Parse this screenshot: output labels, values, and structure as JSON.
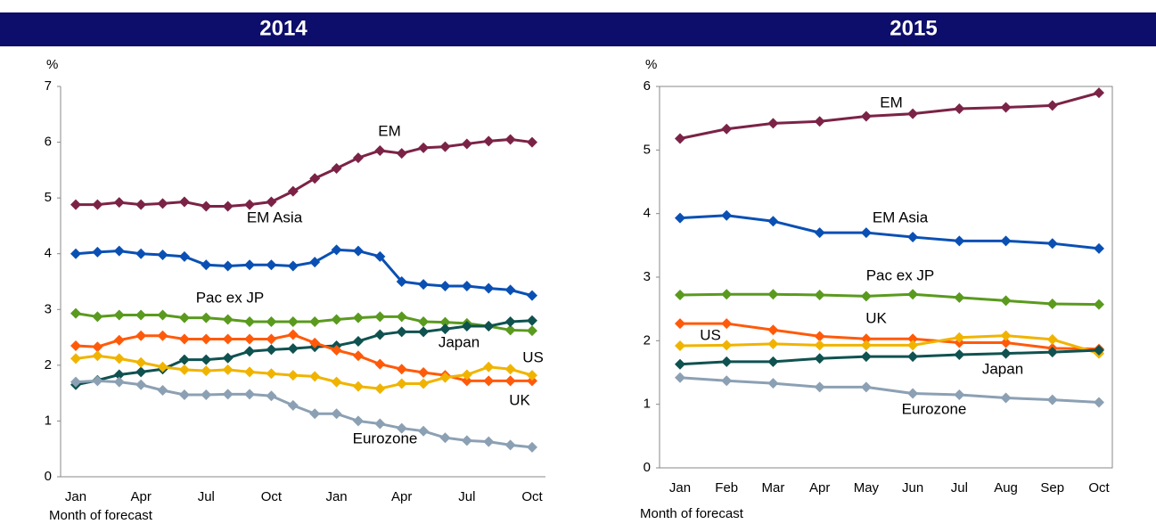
{
  "chart_data": [
    {
      "type": "line",
      "title": "2014",
      "y_label": "%",
      "x_label": "Month of forecast",
      "categories": [
        "Jan",
        null,
        null,
        "Apr",
        null,
        null,
        "Jul",
        null,
        null,
        "Oct",
        null,
        null,
        "Jan",
        null,
        null,
        "Apr",
        null,
        null,
        "Jul",
        null,
        null,
        "Oct"
      ],
      "ylim": [
        0,
        7
      ],
      "yticks": [
        0,
        1,
        2,
        3,
        4,
        5,
        6,
        7
      ],
      "series": [
        {
          "name": "EM",
          "color": "#7b2346",
          "values": [
            4.88,
            4.88,
            4.92,
            4.88,
            4.9,
            4.93,
            4.85,
            4.85,
            4.88,
            4.93,
            5.12,
            5.35,
            5.53,
            5.72,
            5.85,
            5.8,
            5.9,
            5.92,
            5.97,
            6.02,
            6.05,
            6.0
          ]
        },
        {
          "name": "EM Asia",
          "color": "#0a50b4",
          "values": [
            4.0,
            4.03,
            4.05,
            4.0,
            3.98,
            3.95,
            3.8,
            3.78,
            3.8,
            3.8,
            3.78,
            3.85,
            4.07,
            4.05,
            3.95,
            3.5,
            3.45,
            3.42,
            3.42,
            3.38,
            3.35,
            3.25
          ]
        },
        {
          "name": "Pac ex JP",
          "color": "#5a9a1e",
          "values": [
            2.93,
            2.87,
            2.9,
            2.9,
            2.9,
            2.85,
            2.85,
            2.82,
            2.78,
            2.78,
            2.78,
            2.78,
            2.82,
            2.85,
            2.87,
            2.87,
            2.78,
            2.77,
            2.75,
            2.7,
            2.63,
            2.62
          ]
        },
        {
          "name": "Japan",
          "color": "#0f5250",
          "values": [
            1.65,
            1.73,
            1.83,
            1.88,
            1.93,
            2.1,
            2.1,
            2.13,
            2.25,
            2.28,
            2.3,
            2.33,
            2.35,
            2.43,
            2.55,
            2.6,
            2.6,
            2.65,
            2.7,
            2.7,
            2.78,
            2.8
          ]
        },
        {
          "name": "UK",
          "color": "#ff5a0a",
          "values": [
            2.35,
            2.33,
            2.45,
            2.53,
            2.53,
            2.47,
            2.47,
            2.47,
            2.47,
            2.47,
            2.55,
            2.4,
            2.27,
            2.17,
            2.02,
            1.93,
            1.87,
            1.82,
            1.72,
            1.72,
            1.72,
            1.72
          ]
        },
        {
          "name": "US",
          "color": "#f0b400",
          "values": [
            2.12,
            2.17,
            2.12,
            2.05,
            1.97,
            1.92,
            1.9,
            1.92,
            1.88,
            1.85,
            1.82,
            1.8,
            1.7,
            1.62,
            1.58,
            1.67,
            1.67,
            1.78,
            1.83,
            1.97,
            1.93,
            1.82
          ]
        },
        {
          "name": "Eurozone",
          "color": "#8ca0b4",
          "values": [
            1.7,
            1.72,
            1.7,
            1.65,
            1.55,
            1.47,
            1.47,
            1.48,
            1.48,
            1.45,
            1.28,
            1.13,
            1.13,
            1.0,
            0.95,
            0.87,
            0.82,
            0.7,
            0.65,
            0.63,
            0.57,
            0.53
          ]
        }
      ]
    },
    {
      "type": "line",
      "title": "2015",
      "y_label": "%",
      "x_label": "Month of forecast",
      "categories": [
        "Jan",
        "Feb",
        "Mar",
        "Apr",
        "May",
        "Jun",
        "Jul",
        "Aug",
        "Sep",
        "Oct"
      ],
      "ylim": [
        0,
        6
      ],
      "yticks": [
        0,
        1,
        2,
        3,
        4,
        5,
        6
      ],
      "series": [
        {
          "name": "EM",
          "color": "#7b2346",
          "values": [
            5.18,
            5.33,
            5.42,
            5.45,
            5.53,
            5.57,
            5.65,
            5.67,
            5.7,
            5.9
          ]
        },
        {
          "name": "EM Asia",
          "color": "#0a50b4",
          "values": [
            3.93,
            3.97,
            3.88,
            3.7,
            3.7,
            3.63,
            3.57,
            3.57,
            3.53,
            3.45
          ]
        },
        {
          "name": "Pac ex JP",
          "color": "#5a9a1e",
          "values": [
            2.72,
            2.73,
            2.73,
            2.72,
            2.7,
            2.73,
            2.68,
            2.63,
            2.58,
            2.57
          ]
        },
        {
          "name": "UK",
          "color": "#ff5a0a",
          "values": [
            2.27,
            2.27,
            2.17,
            2.07,
            2.03,
            2.03,
            1.97,
            1.97,
            1.88,
            1.87
          ]
        },
        {
          "name": "US",
          "color": "#f0b400",
          "values": [
            1.92,
            1.93,
            1.95,
            1.93,
            1.93,
            1.93,
            2.05,
            2.08,
            2.02,
            1.8
          ]
        },
        {
          "name": "Japan",
          "color": "#0f5250",
          "values": [
            1.63,
            1.67,
            1.67,
            1.72,
            1.75,
            1.75,
            1.78,
            1.8,
            1.82,
            1.85
          ]
        },
        {
          "name": "Eurozone",
          "color": "#8ca0b4",
          "values": [
            1.42,
            1.37,
            1.33,
            1.27,
            1.27,
            1.17,
            1.15,
            1.1,
            1.07,
            1.03
          ]
        }
      ]
    }
  ]
}
